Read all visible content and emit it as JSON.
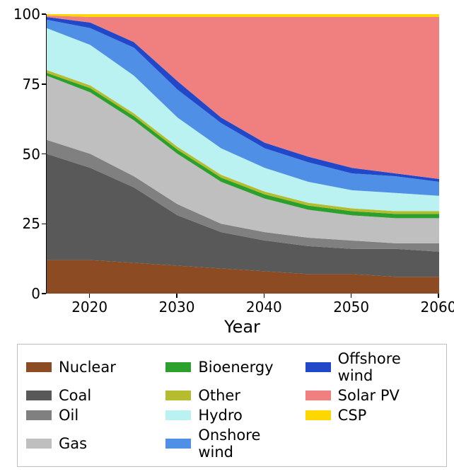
{
  "chart": {
    "type": "area",
    "xlabel": "Year",
    "xlabel_fontsize": 24,
    "tick_fontsize": 20,
    "xlim": [
      2015,
      2060
    ],
    "ylim": [
      0,
      100
    ],
    "yticks": [
      0,
      25,
      50,
      75,
      100
    ],
    "xticks": [
      2020,
      2030,
      2040,
      2050,
      2060
    ],
    "background_color": "#ffffff",
    "series": [
      {
        "name": "Nuclear",
        "color": "#8c4b23"
      },
      {
        "name": "Coal",
        "color": "#595959"
      },
      {
        "name": "Oil",
        "color": "#808080"
      },
      {
        "name": "Gas",
        "color": "#bfbfbf"
      },
      {
        "name": "Bioenergy",
        "color": "#2ca02c"
      },
      {
        "name": "Other",
        "color": "#b5bd2e"
      },
      {
        "name": "Hydro",
        "color": "#b9f2f0"
      },
      {
        "name": "Onshore wind",
        "color": "#4f8fe6"
      },
      {
        "name": "Offshore wind",
        "color": "#2048c9"
      },
      {
        "name": "Solar PV",
        "color": "#f08080"
      },
      {
        "name": "CSP",
        "color": "#ffd700"
      }
    ],
    "years": [
      2015,
      2020,
      2025,
      2030,
      2035,
      2040,
      2045,
      2050,
      2055,
      2060
    ],
    "cumulative": {
      "Nuclear": [
        12,
        12,
        11,
        10,
        9,
        8,
        7,
        7,
        6,
        6
      ],
      "Coal": [
        50,
        45,
        38,
        28,
        22,
        19,
        17,
        16,
        16,
        15
      ],
      "Oil": [
        55,
        50,
        42,
        32,
        25,
        22,
        20,
        19,
        18,
        18
      ],
      "Gas": [
        78,
        72,
        62,
        50,
        40,
        34,
        30,
        28,
        27,
        27
      ],
      "Bioenergy": [
        79,
        73.5,
        63.5,
        51.5,
        41.5,
        35.5,
        31.5,
        29.5,
        28.5,
        28.5
      ],
      "Other": [
        80,
        74.5,
        64.5,
        52.5,
        42.5,
        36.5,
        32.5,
        30.5,
        29.5,
        29.5
      ],
      "Hydro": [
        95,
        89,
        78,
        63,
        52,
        45,
        40,
        37,
        36,
        35
      ],
      "Onshore wind": [
        98,
        95,
        88,
        73,
        61,
        52,
        47,
        43,
        42,
        40
      ],
      "Offshore wind": [
        99,
        97,
        90,
        76,
        63,
        54,
        49,
        45,
        43,
        41
      ],
      "Solar PV": [
        99.5,
        99,
        99,
        99,
        99,
        99,
        99,
        99,
        99,
        99
      ],
      "CSP": [
        100,
        100,
        100,
        100,
        100,
        100,
        100,
        100,
        100,
        100
      ]
    }
  },
  "legend": {
    "items": [
      {
        "label": "Nuclear",
        "color": "#8c4b23"
      },
      {
        "label": "Coal",
        "color": "#595959"
      },
      {
        "label": "Oil",
        "color": "#808080"
      },
      {
        "label": "Gas",
        "color": "#bfbfbf"
      },
      {
        "label": "Bioenergy",
        "color": "#2ca02c"
      },
      {
        "label": "Other",
        "color": "#b5bd2e"
      },
      {
        "label": "Hydro",
        "color": "#b9f2f0"
      },
      {
        "label": "Onshore wind",
        "color": "#4f8fe6"
      },
      {
        "label": "Offshore wind",
        "color": "#2048c9"
      },
      {
        "label": "Solar PV",
        "color": "#f08080"
      },
      {
        "label": "CSP",
        "color": "#ffd700"
      }
    ]
  }
}
